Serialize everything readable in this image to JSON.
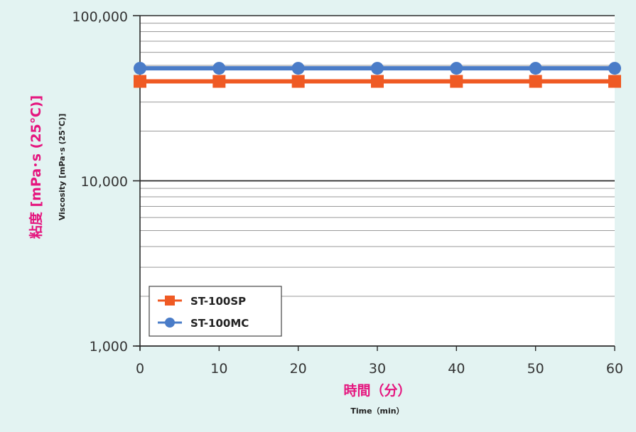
{
  "chart_data": {
    "type": "line",
    "x": [
      0,
      10,
      20,
      30,
      40,
      50,
      60
    ],
    "xticks": [
      "0",
      "10",
      "20",
      "30",
      "40",
      "50",
      "60"
    ],
    "xlim": [
      0,
      60
    ],
    "ylim": [
      1000,
      100000
    ],
    "yscale": "log",
    "yticks": [
      "1,000",
      "10,000",
      "100,000"
    ],
    "xlabel": "時間（分）",
    "xlabel_en": "Time（min）",
    "ylabel": "粘度 [mPa･s (25℃)]",
    "ylabel_en": "Viscosity [mPa･s (25℃)]",
    "grid": "horizontal minor log lines",
    "legend_position": "bottom-left",
    "series": [
      {
        "name": "ST-100SP",
        "color": "#ef5a24",
        "marker": "square",
        "values": [
          40000,
          40000,
          40000,
          40000,
          40000,
          40000,
          40000
        ]
      },
      {
        "name": "ST-100MC",
        "color": "#4a7cc8",
        "marker": "circle",
        "values": [
          48000,
          48000,
          48000,
          48000,
          48000,
          48000,
          48000
        ]
      }
    ]
  }
}
